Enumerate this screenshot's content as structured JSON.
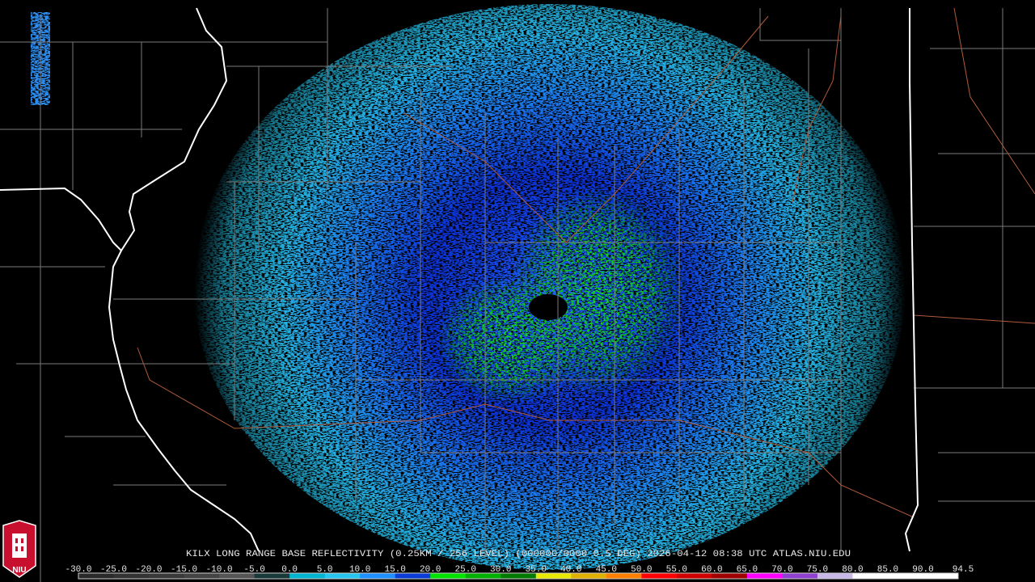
{
  "caption": "KILX LONG RANGE BASE REFLECTIVITY (0.25KM / 256 LEVEL) (000000/0000 0.5 DEG) 2026-04-12 08:38 UTC  ATLAS.NIU.EDU",
  "logo": "NIU",
  "scale": {
    "labels": [
      "-30.0",
      "-25.0",
      "-20.0",
      "-15.0",
      "-10.0",
      "-5.0",
      "0.0",
      "5.0",
      "10.0",
      "15.0",
      "20.0",
      "25.0",
      "30.0",
      "35.0",
      "40.0",
      "45.0",
      "50.0",
      "55.0",
      "60.0",
      "65.0",
      "70.0",
      "75.0",
      "80.0",
      "85.0",
      "90.0",
      "94.5"
    ],
    "colors": [
      "#2a2a2a",
      "#333333",
      "#3a3a3a",
      "#444444",
      "#555555",
      "#1a3a3a",
      "#00b4d0",
      "#27c6f0",
      "#1e90ff",
      "#0a3cd8",
      "#00e400",
      "#00b000",
      "#007a00",
      "#e8e800",
      "#e0b000",
      "#ff8000",
      "#ff0000",
      "#d00000",
      "#a00000",
      "#ff00ff",
      "#9040d0",
      "#c8b8e8",
      "#ffffff",
      "#ffffff",
      "#ffffff"
    ]
  }
}
